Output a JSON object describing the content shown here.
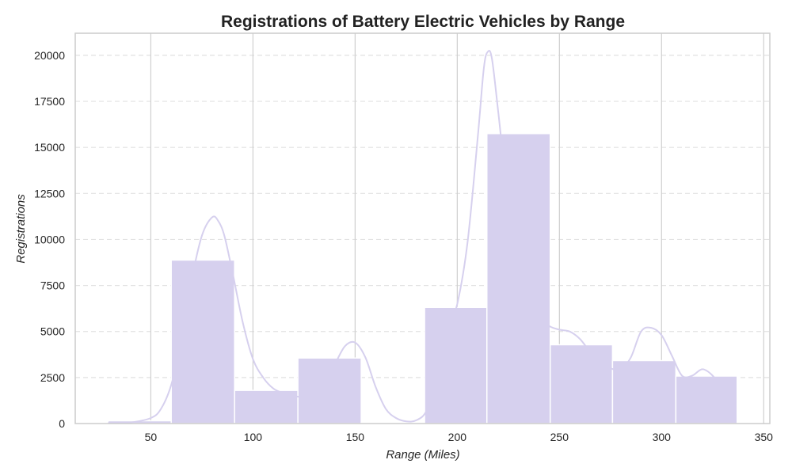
{
  "chart_data": {
    "type": "bar",
    "title": "Registrations of Battery Electric Vehicles by Range",
    "xlabel": "Range (Miles)",
    "ylabel": "Registrations",
    "xlim": [
      13,
      353
    ],
    "ylim": [
      0,
      21200
    ],
    "x_ticks": [
      50,
      100,
      150,
      200,
      250,
      300,
      350
    ],
    "y_ticks": [
      0,
      2500,
      5000,
      7500,
      10000,
      12500,
      15000,
      17500,
      20000
    ],
    "bins": [
      {
        "start": 29,
        "end": 60,
        "count": 150
      },
      {
        "start": 60,
        "end": 91,
        "count": 8880
      },
      {
        "start": 91,
        "end": 122,
        "count": 1800
      },
      {
        "start": 122,
        "end": 153,
        "count": 3560
      },
      {
        "start": 153,
        "end": 184,
        "count": 60
      },
      {
        "start": 184,
        "end": 214.5,
        "count": 6310
      },
      {
        "start": 214.5,
        "end": 245.5,
        "count": 15750
      },
      {
        "start": 245.5,
        "end": 276,
        "count": 4280
      },
      {
        "start": 276,
        "end": 307,
        "count": 3420
      },
      {
        "start": 307,
        "end": 337,
        "count": 2580
      }
    ],
    "kde": {
      "x": [
        29,
        40,
        50,
        55,
        60,
        65,
        70,
        75,
        80,
        83,
        86,
        90,
        95,
        100,
        105,
        110,
        115,
        120,
        125,
        130,
        135,
        140,
        145,
        150,
        155,
        160,
        165,
        170,
        175,
        180,
        185,
        190,
        195,
        200,
        205,
        210,
        213,
        215,
        217,
        220,
        225,
        230,
        235,
        240,
        245,
        250,
        255,
        260,
        265,
        270,
        275,
        280,
        285,
        290,
        295,
        300,
        305,
        310,
        315,
        320,
        325,
        330,
        335
      ],
      "y": [
        20,
        60,
        300,
        800,
        2100,
        4500,
        7800,
        10200,
        11200,
        11000,
        10200,
        8200,
        5500,
        3500,
        2500,
        1900,
        1650,
        1500,
        1450,
        1650,
        2200,
        3200,
        4200,
        4400,
        3600,
        2000,
        800,
        300,
        120,
        180,
        700,
        2400,
        4900,
        6500,
        9800,
        15500,
        19300,
        20200,
        19800,
        17000,
        12000,
        8800,
        7000,
        5800,
        5300,
        5100,
        5000,
        4600,
        3900,
        3300,
        3000,
        2950,
        3600,
        5000,
        5200,
        4800,
        3700,
        2600,
        2600,
        2950,
        2600,
        1800,
        1100
      ]
    },
    "grid": {
      "x": "solid",
      "y": "dashed"
    },
    "colors": {
      "bar_fill": "#d6d0ee",
      "bar_edge": "#ffffff",
      "kde_line": "#d6d0ee",
      "x_grid": "#cfcfcf",
      "y_grid": "#e2e2e2",
      "spine": "#cccccc"
    }
  }
}
